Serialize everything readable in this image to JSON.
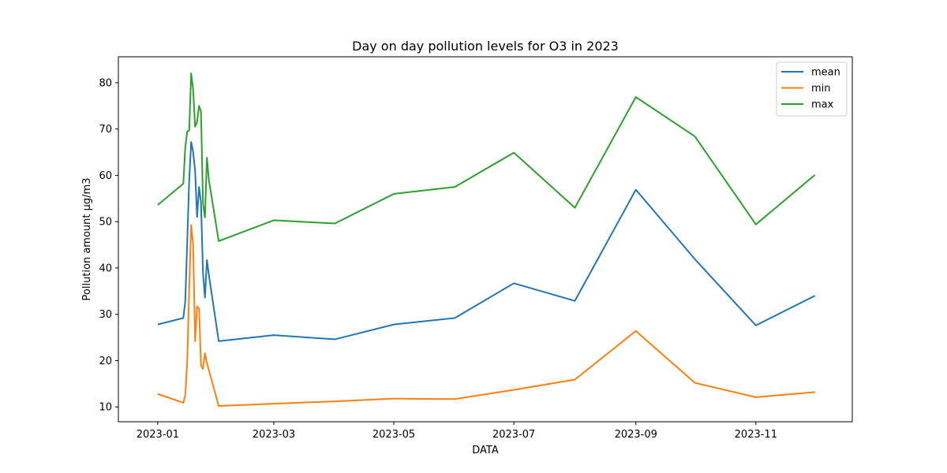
{
  "chart_data": {
    "type": "line",
    "title": "Day on day pollution levels for O3 in 2023",
    "xlabel": "DATA",
    "ylabel": "Pollution amount µg/m3",
    "x_ticks": [
      "2023-01",
      "2023-03",
      "2023-05",
      "2023-07",
      "2023-09",
      "2023-11"
    ],
    "y_ticks": [
      10,
      20,
      30,
      40,
      50,
      60,
      70,
      80
    ],
    "xlim": [
      "2022-12-12",
      "2023-12-20"
    ],
    "ylim": [
      6.8,
      85.6
    ],
    "legend_position": "top-right",
    "grid": false,
    "series": [
      {
        "name": "mean",
        "color": "#1f77b4",
        "points": [
          [
            "2023-01-01",
            27.8
          ],
          [
            "2023-01-14",
            29.2
          ],
          [
            "2023-01-15",
            32.8
          ],
          [
            "2023-01-16",
            45.8
          ],
          [
            "2023-01-17",
            59.0
          ],
          [
            "2023-01-18",
            67.2
          ],
          [
            "2023-01-19",
            65.0
          ],
          [
            "2023-01-20",
            61.0
          ],
          [
            "2023-01-21",
            51.0
          ],
          [
            "2023-01-22",
            57.5
          ],
          [
            "2023-01-23",
            54.0
          ],
          [
            "2023-01-24",
            39.0
          ],
          [
            "2023-01-25",
            33.6
          ],
          [
            "2023-01-26",
            41.7
          ],
          [
            "2023-01-27",
            38.5
          ],
          [
            "2023-02-01",
            24.2
          ],
          [
            "2023-03-01",
            25.5
          ],
          [
            "2023-04-01",
            24.6
          ],
          [
            "2023-05-01",
            27.8
          ],
          [
            "2023-06-01",
            29.2
          ],
          [
            "2023-07-01",
            36.7
          ],
          [
            "2023-08-01",
            32.9
          ],
          [
            "2023-09-01",
            56.9
          ],
          [
            "2023-10-01",
            41.9
          ],
          [
            "2023-11-01",
            27.6
          ],
          [
            "2023-12-01",
            34.0
          ]
        ]
      },
      {
        "name": "min",
        "color": "#ff7f0e",
        "points": [
          [
            "2023-01-01",
            12.8
          ],
          [
            "2023-01-14",
            10.9
          ],
          [
            "2023-01-15",
            12.5
          ],
          [
            "2023-01-16",
            20.0
          ],
          [
            "2023-01-17",
            35.5
          ],
          [
            "2023-01-18",
            49.3
          ],
          [
            "2023-01-19",
            45.0
          ],
          [
            "2023-01-20",
            24.2
          ],
          [
            "2023-01-21",
            31.7
          ],
          [
            "2023-01-22",
            31.2
          ],
          [
            "2023-01-23",
            19.0
          ],
          [
            "2023-01-24",
            18.2
          ],
          [
            "2023-01-25",
            21.6
          ],
          [
            "2023-01-26",
            19.5
          ],
          [
            "2023-02-01",
            10.2
          ],
          [
            "2023-03-01",
            10.7
          ],
          [
            "2023-04-01",
            11.2
          ],
          [
            "2023-05-01",
            11.8
          ],
          [
            "2023-06-01",
            11.7
          ],
          [
            "2023-07-01",
            13.7
          ],
          [
            "2023-08-01",
            15.9
          ],
          [
            "2023-09-01",
            26.4
          ],
          [
            "2023-10-01",
            15.2
          ],
          [
            "2023-11-01",
            12.1
          ],
          [
            "2023-12-01",
            13.2
          ]
        ]
      },
      {
        "name": "max",
        "color": "#2ca02c",
        "points": [
          [
            "2023-01-01",
            53.6
          ],
          [
            "2023-01-14",
            58.2
          ],
          [
            "2023-01-15",
            66.0
          ],
          [
            "2023-01-16",
            69.5
          ],
          [
            "2023-01-17",
            69.7
          ],
          [
            "2023-01-18",
            82.0
          ],
          [
            "2023-01-19",
            78.5
          ],
          [
            "2023-01-20",
            70.5
          ],
          [
            "2023-01-21",
            71.5
          ],
          [
            "2023-01-22",
            75.0
          ],
          [
            "2023-01-23",
            73.8
          ],
          [
            "2023-01-24",
            54.0
          ],
          [
            "2023-01-25",
            50.9
          ],
          [
            "2023-01-26",
            63.8
          ],
          [
            "2023-01-27",
            59.0
          ],
          [
            "2023-02-01",
            45.8
          ],
          [
            "2023-03-01",
            50.3
          ],
          [
            "2023-04-01",
            49.6
          ],
          [
            "2023-05-01",
            56.0
          ],
          [
            "2023-06-01",
            57.5
          ],
          [
            "2023-07-01",
            64.9
          ],
          [
            "2023-08-01",
            53.0
          ],
          [
            "2023-09-01",
            76.9
          ],
          [
            "2023-10-01",
            68.4
          ],
          [
            "2023-11-01",
            49.4
          ],
          [
            "2023-12-01",
            60.1
          ]
        ]
      }
    ]
  }
}
